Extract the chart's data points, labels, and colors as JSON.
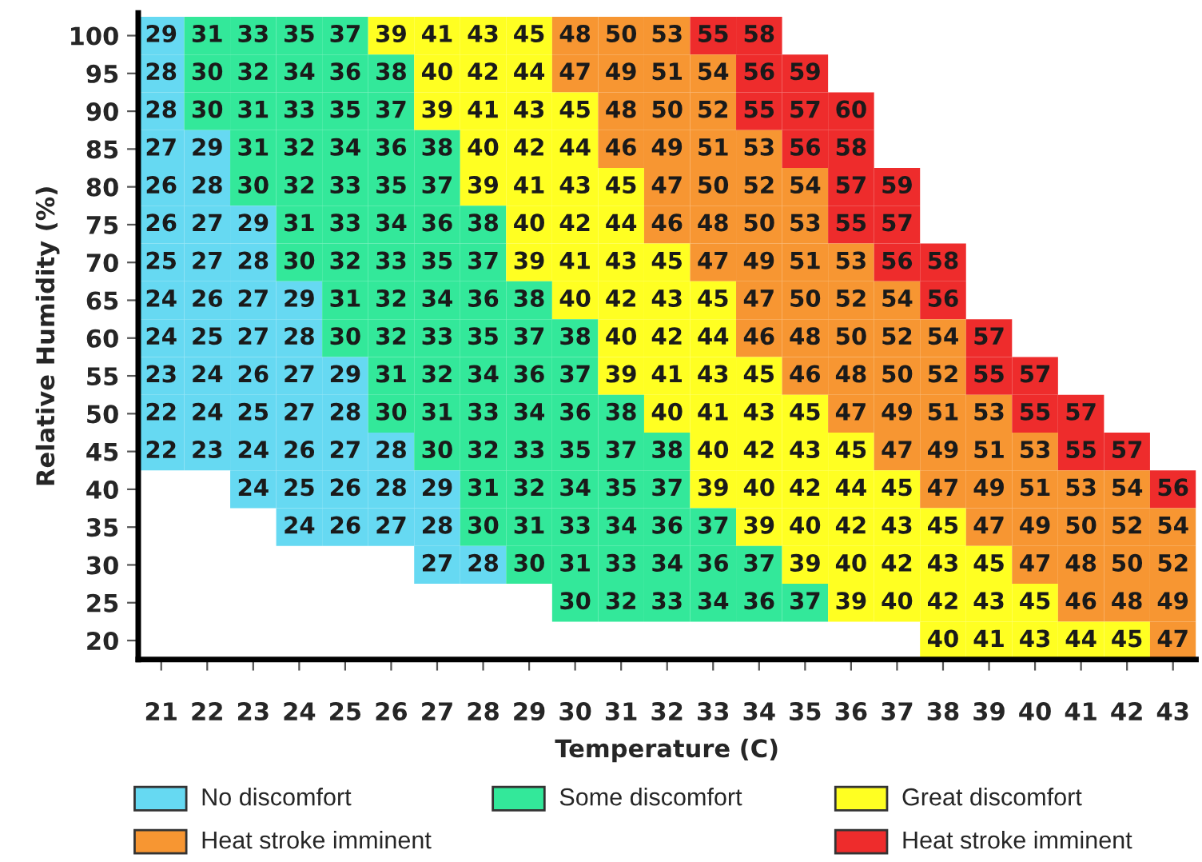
{
  "chart_data": {
    "type": "heatmap",
    "xlabel": "Temperature (C)",
    "ylabel": "Relative Humidity (%)",
    "categories": [
      "21",
      "22",
      "23",
      "24",
      "25",
      "26",
      "27",
      "28",
      "29",
      "30",
      "31",
      "32",
      "33",
      "34",
      "35",
      "36",
      "37",
      "38",
      "39",
      "40",
      "41",
      "42",
      "43"
    ],
    "y_categories": [
      "100",
      "95",
      "90",
      "85",
      "80",
      "75",
      "70",
      "65",
      "60",
      "55",
      "50",
      "45",
      "40",
      "35",
      "30",
      "25",
      "20"
    ],
    "cells": [
      [
        29,
        31,
        33,
        35,
        37,
        39,
        41,
        43,
        45,
        48,
        50,
        53,
        55,
        58,
        null,
        null,
        null,
        null,
        null,
        null,
        null,
        null,
        null
      ],
      [
        28,
        30,
        32,
        34,
        36,
        38,
        40,
        42,
        44,
        47,
        49,
        51,
        54,
        56,
        59,
        null,
        null,
        null,
        null,
        null,
        null,
        null,
        null
      ],
      [
        28,
        30,
        31,
        33,
        35,
        37,
        39,
        41,
        43,
        45,
        48,
        50,
        52,
        55,
        57,
        60,
        null,
        null,
        null,
        null,
        null,
        null,
        null
      ],
      [
        27,
        29,
        31,
        32,
        34,
        36,
        38,
        40,
        42,
        44,
        46,
        49,
        51,
        53,
        56,
        58,
        null,
        null,
        null,
        null,
        null,
        null,
        null
      ],
      [
        26,
        28,
        30,
        32,
        33,
        35,
        37,
        39,
        41,
        43,
        45,
        47,
        50,
        52,
        54,
        57,
        59,
        null,
        null,
        null,
        null,
        null,
        null
      ],
      [
        26,
        27,
        29,
        31,
        33,
        34,
        36,
        38,
        40,
        42,
        44,
        46,
        48,
        50,
        53,
        55,
        57,
        null,
        null,
        null,
        null,
        null,
        null
      ],
      [
        25,
        27,
        28,
        30,
        32,
        33,
        35,
        37,
        39,
        41,
        43,
        45,
        47,
        49,
        51,
        53,
        56,
        58,
        null,
        null,
        null,
        null,
        null
      ],
      [
        24,
        26,
        27,
        29,
        31,
        32,
        34,
        36,
        38,
        40,
        42,
        43,
        45,
        47,
        50,
        52,
        54,
        56,
        null,
        null,
        null,
        null,
        null
      ],
      [
        24,
        25,
        27,
        28,
        30,
        32,
        33,
        35,
        37,
        38,
        40,
        42,
        44,
        46,
        48,
        50,
        52,
        54,
        57,
        null,
        null,
        null,
        null
      ],
      [
        23,
        24,
        26,
        27,
        29,
        31,
        32,
        34,
        36,
        37,
        39,
        41,
        43,
        45,
        46,
        48,
        50,
        52,
        55,
        57,
        null,
        null,
        null
      ],
      [
        22,
        24,
        25,
        27,
        28,
        30,
        31,
        33,
        34,
        36,
        38,
        40,
        41,
        43,
        45,
        47,
        49,
        51,
        53,
        55,
        57,
        null,
        null
      ],
      [
        22,
        23,
        24,
        26,
        27,
        28,
        30,
        32,
        33,
        35,
        37,
        38,
        40,
        42,
        43,
        45,
        47,
        49,
        51,
        53,
        55,
        57,
        null
      ],
      [
        null,
        null,
        24,
        25,
        26,
        28,
        29,
        31,
        32,
        34,
        35,
        37,
        39,
        40,
        42,
        44,
        45,
        47,
        49,
        51,
        53,
        54,
        56
      ],
      [
        null,
        null,
        null,
        24,
        26,
        27,
        28,
        30,
        31,
        33,
        34,
        36,
        37,
        39,
        40,
        42,
        43,
        45,
        47,
        49,
        50,
        52,
        54
      ],
      [
        null,
        null,
        null,
        null,
        null,
        null,
        27,
        28,
        30,
        31,
        33,
        34,
        36,
        37,
        39,
        40,
        42,
        43,
        45,
        47,
        48,
        50,
        52
      ],
      [
        null,
        null,
        null,
        null,
        null,
        null,
        null,
        null,
        null,
        30,
        32,
        33,
        34,
        36,
        37,
        39,
        40,
        42,
        43,
        45,
        46,
        48,
        49
      ],
      [
        null,
        null,
        null,
        null,
        null,
        null,
        null,
        null,
        null,
        null,
        null,
        null,
        null,
        null,
        null,
        null,
        null,
        40,
        41,
        43,
        44,
        45,
        47
      ]
    ],
    "colors": [
      [
        "#66d9f2",
        "#33e89a",
        "#33e89a",
        "#33e89a",
        "#33e89a",
        "#ffff22",
        "#ffff22",
        "#ffff22",
        "#ffff22",
        "#f79632",
        "#f79632",
        "#f79632",
        "#ee2c2c",
        "#ee2c2c",
        null,
        null,
        null,
        null,
        null,
        null,
        null,
        null,
        null
      ],
      [
        "#66d9f2",
        "#33e89a",
        "#33e89a",
        "#33e89a",
        "#33e89a",
        "#33e89a",
        "#ffff22",
        "#ffff22",
        "#ffff22",
        "#f79632",
        "#f79632",
        "#f79632",
        "#f79632",
        "#ee2c2c",
        "#ee2c2c",
        null,
        null,
        null,
        null,
        null,
        null,
        null,
        null
      ],
      [
        "#66d9f2",
        "#33e89a",
        "#33e89a",
        "#33e89a",
        "#33e89a",
        "#33e89a",
        "#ffff22",
        "#ffff22",
        "#ffff22",
        "#ffff22",
        "#f79632",
        "#f79632",
        "#f79632",
        "#ee2c2c",
        "#ee2c2c",
        "#ee2c2c",
        null,
        null,
        null,
        null,
        null,
        null,
        null
      ],
      [
        "#66d9f2",
        "#66d9f2",
        "#33e89a",
        "#33e89a",
        "#33e89a",
        "#33e89a",
        "#33e89a",
        "#ffff22",
        "#ffff22",
        "#ffff22",
        "#f79632",
        "#f79632",
        "#f79632",
        "#f79632",
        "#ee2c2c",
        "#ee2c2c",
        null,
        null,
        null,
        null,
        null,
        null,
        null
      ],
      [
        "#66d9f2",
        "#66d9f2",
        "#33e89a",
        "#33e89a",
        "#33e89a",
        "#33e89a",
        "#33e89a",
        "#ffff22",
        "#ffff22",
        "#ffff22",
        "#ffff22",
        "#f79632",
        "#f79632",
        "#f79632",
        "#f79632",
        "#ee2c2c",
        "#ee2c2c",
        null,
        null,
        null,
        null,
        null,
        null
      ],
      [
        "#66d9f2",
        "#66d9f2",
        "#66d9f2",
        "#33e89a",
        "#33e89a",
        "#33e89a",
        "#33e89a",
        "#33e89a",
        "#ffff22",
        "#ffff22",
        "#ffff22",
        "#f79632",
        "#f79632",
        "#f79632",
        "#f79632",
        "#ee2c2c",
        "#ee2c2c",
        null,
        null,
        null,
        null,
        null,
        null
      ],
      [
        "#66d9f2",
        "#66d9f2",
        "#66d9f2",
        "#33e89a",
        "#33e89a",
        "#33e89a",
        "#33e89a",
        "#33e89a",
        "#ffff22",
        "#ffff22",
        "#ffff22",
        "#ffff22",
        "#f79632",
        "#f79632",
        "#f79632",
        "#f79632",
        "#ee2c2c",
        "#ee2c2c",
        null,
        null,
        null,
        null,
        null
      ],
      [
        "#66d9f2",
        "#66d9f2",
        "#66d9f2",
        "#66d9f2",
        "#33e89a",
        "#33e89a",
        "#33e89a",
        "#33e89a",
        "#33e89a",
        "#ffff22",
        "#ffff22",
        "#ffff22",
        "#ffff22",
        "#f79632",
        "#f79632",
        "#f79632",
        "#f79632",
        "#ee2c2c",
        null,
        null,
        null,
        null,
        null
      ],
      [
        "#66d9f2",
        "#66d9f2",
        "#66d9f2",
        "#66d9f2",
        "#33e89a",
        "#33e89a",
        "#33e89a",
        "#33e89a",
        "#33e89a",
        "#33e89a",
        "#ffff22",
        "#ffff22",
        "#ffff22",
        "#f79632",
        "#f79632",
        "#f79632",
        "#f79632",
        "#f79632",
        "#ee2c2c",
        null,
        null,
        null,
        null
      ],
      [
        "#66d9f2",
        "#66d9f2",
        "#66d9f2",
        "#66d9f2",
        "#66d9f2",
        "#33e89a",
        "#33e89a",
        "#33e89a",
        "#33e89a",
        "#33e89a",
        "#ffff22",
        "#ffff22",
        "#ffff22",
        "#ffff22",
        "#f79632",
        "#f79632",
        "#f79632",
        "#f79632",
        "#ee2c2c",
        "#ee2c2c",
        null,
        null,
        null
      ],
      [
        "#66d9f2",
        "#66d9f2",
        "#66d9f2",
        "#66d9f2",
        "#66d9f2",
        "#33e89a",
        "#33e89a",
        "#33e89a",
        "#33e89a",
        "#33e89a",
        "#33e89a",
        "#ffff22",
        "#ffff22",
        "#ffff22",
        "#ffff22",
        "#f79632",
        "#f79632",
        "#f79632",
        "#f79632",
        "#ee2c2c",
        "#ee2c2c",
        null,
        null
      ],
      [
        "#66d9f2",
        "#66d9f2",
        "#66d9f2",
        "#66d9f2",
        "#66d9f2",
        "#66d9f2",
        "#33e89a",
        "#33e89a",
        "#33e89a",
        "#33e89a",
        "#33e89a",
        "#33e89a",
        "#ffff22",
        "#ffff22",
        "#ffff22",
        "#ffff22",
        "#f79632",
        "#f79632",
        "#f79632",
        "#f79632",
        "#ee2c2c",
        "#ee2c2c",
        null
      ],
      [
        null,
        null,
        "#66d9f2",
        "#66d9f2",
        "#66d9f2",
        "#66d9f2",
        "#66d9f2",
        "#33e89a",
        "#33e89a",
        "#33e89a",
        "#33e89a",
        "#33e89a",
        "#ffff22",
        "#ffff22",
        "#ffff22",
        "#ffff22",
        "#ffff22",
        "#f79632",
        "#f79632",
        "#f79632",
        "#f79632",
        "#f79632",
        "#ee2c2c"
      ],
      [
        null,
        null,
        null,
        "#66d9f2",
        "#66d9f2",
        "#66d9f2",
        "#66d9f2",
        "#33e89a",
        "#33e89a",
        "#33e89a",
        "#33e89a",
        "#33e89a",
        "#33e89a",
        "#ffff22",
        "#ffff22",
        "#ffff22",
        "#ffff22",
        "#ffff22",
        "#f79632",
        "#f79632",
        "#f79632",
        "#f79632",
        "#f79632"
      ],
      [
        null,
        null,
        null,
        null,
        null,
        null,
        "#66d9f2",
        "#66d9f2",
        "#33e89a",
        "#33e89a",
        "#33e89a",
        "#33e89a",
        "#33e89a",
        "#33e89a",
        "#ffff22",
        "#ffff22",
        "#ffff22",
        "#ffff22",
        "#ffff22",
        "#f79632",
        "#f79632",
        "#f79632",
        "#f79632"
      ],
      [
        null,
        null,
        null,
        null,
        null,
        null,
        null,
        null,
        null,
        "#33e89a",
        "#33e89a",
        "#33e89a",
        "#33e89a",
        "#33e89a",
        "#33e89a",
        "#ffff22",
        "#ffff22",
        "#ffff22",
        "#ffff22",
        "#ffff22",
        "#f79632",
        "#f79632",
        "#f79632"
      ],
      [
        null,
        null,
        null,
        null,
        null,
        null,
        null,
        null,
        null,
        null,
        null,
        null,
        null,
        null,
        null,
        null,
        null,
        "#ffff22",
        "#ffff22",
        "#ffff22",
        "#ffff22",
        "#ffff22",
        "#f79632"
      ]
    ],
    "annotations": [
      "No discomfort",
      "Some discomfort",
      "Great discomfort",
      "Heat stroke imminent",
      "Heat stroke imminent"
    ],
    "data_labels": true,
    "grid": false
  }
}
